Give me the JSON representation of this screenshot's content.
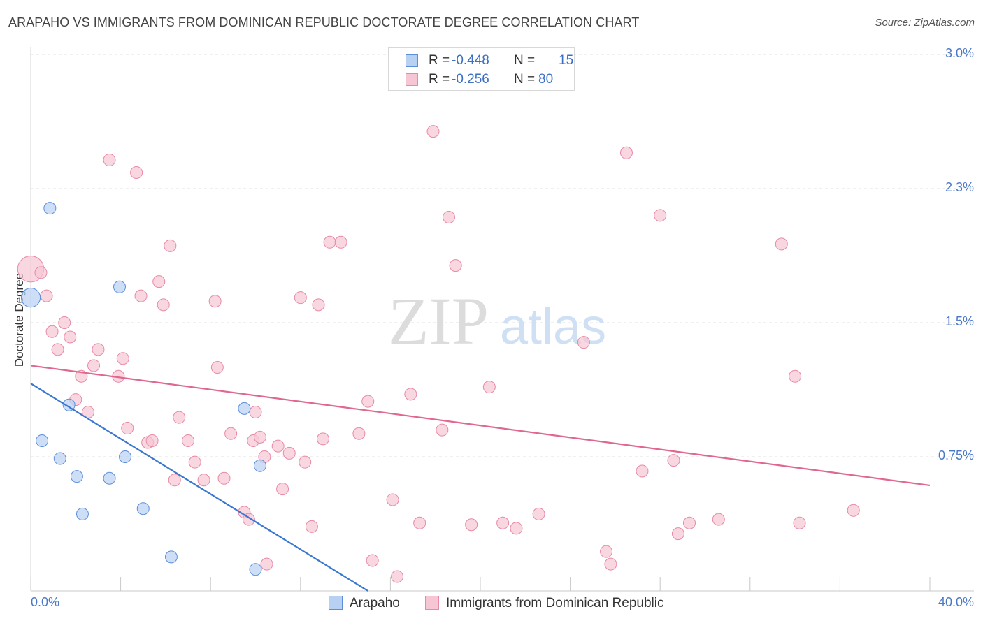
{
  "chart_data": {
    "type": "scatter",
    "title": "ARAPAHO VS IMMIGRANTS FROM DOMINICAN REPUBLIC DOCTORATE DEGREE CORRELATION CHART",
    "source": "Source: ZipAtlas.com",
    "xlabel": "",
    "ylabel": "Doctorate Degree",
    "xlim": [
      0,
      40
    ],
    "ylim": [
      0,
      3.0
    ],
    "x_tick_labels": [
      "0.0%",
      "40.0%"
    ],
    "y_ticks": [
      {
        "value": 3.0,
        "label": "3.0%"
      },
      {
        "value": 2.25,
        "label": "2.3%"
      },
      {
        "value": 1.5,
        "label": "1.5%"
      },
      {
        "value": 0.75,
        "label": "0.75%"
      }
    ],
    "watermark": {
      "zip": "ZIP",
      "atlas": "atlas"
    },
    "series": [
      {
        "name": "Arapaho",
        "color": "#5b8fd9",
        "fill": "#b8d0f2",
        "line_color": "#3a77d0",
        "stats": {
          "r_label": "R =",
          "r": "-0.448",
          "n_label": "N =",
          "n": "15"
        },
        "points": [
          [
            0.0,
            1.64,
            1.6
          ],
          [
            0.85,
            2.14,
            1.0
          ],
          [
            3.95,
            1.7,
            1.0
          ],
          [
            1.7,
            1.04,
            1.0
          ],
          [
            0.5,
            0.84,
            1.0
          ],
          [
            1.3,
            0.74,
            1.0
          ],
          [
            2.05,
            0.64,
            1.0
          ],
          [
            3.5,
            0.63,
            1.0
          ],
          [
            4.2,
            0.75,
            1.0
          ],
          [
            2.3,
            0.43,
            1.0
          ],
          [
            5.0,
            0.46,
            1.0
          ],
          [
            6.25,
            0.19,
            1.0
          ],
          [
            9.5,
            1.02,
            1.0
          ],
          [
            10.2,
            0.7,
            1.0
          ],
          [
            10.0,
            0.12,
            1.0
          ]
        ],
        "trend": [
          [
            0.0,
            1.16
          ],
          [
            15.0,
            0.0
          ]
        ]
      },
      {
        "name": "Immigrants from Dominican Republic",
        "color": "#e889a6",
        "fill": "#f7c6d4",
        "line_color": "#e0688e",
        "stats": {
          "r_label": "R =",
          "r": "-0.256",
          "n_label": "N =",
          "n": "80"
        },
        "points": [
          [
            0.0,
            1.8,
            2.2
          ],
          [
            0.45,
            1.78,
            1.0
          ],
          [
            0.7,
            1.65,
            1.0
          ],
          [
            0.95,
            1.45,
            1.0
          ],
          [
            1.2,
            1.35,
            1.0
          ],
          [
            1.5,
            1.5,
            1.0
          ],
          [
            1.75,
            1.42,
            1.0
          ],
          [
            2.25,
            1.2,
            1.0
          ],
          [
            2.0,
            1.07,
            1.0
          ],
          [
            2.55,
            1.0,
            1.0
          ],
          [
            2.8,
            1.26,
            1.0
          ],
          [
            3.0,
            1.35,
            1.0
          ],
          [
            3.5,
            2.41,
            1.0
          ],
          [
            3.9,
            1.2,
            1.0
          ],
          [
            4.1,
            1.3,
            1.0
          ],
          [
            4.3,
            0.91,
            1.0
          ],
          [
            4.7,
            2.34,
            1.0
          ],
          [
            4.9,
            1.65,
            1.0
          ],
          [
            5.2,
            0.83,
            1.0
          ],
          [
            5.4,
            0.84,
            1.0
          ],
          [
            5.7,
            1.73,
            1.0
          ],
          [
            5.9,
            1.6,
            1.0
          ],
          [
            6.2,
            1.93,
            1.0
          ],
          [
            6.4,
            0.62,
            1.0
          ],
          [
            6.6,
            0.97,
            1.0
          ],
          [
            7.0,
            0.84,
            1.0
          ],
          [
            7.3,
            0.72,
            1.0
          ],
          [
            7.7,
            0.62,
            1.0
          ],
          [
            8.2,
            1.62,
            1.0
          ],
          [
            8.3,
            1.25,
            1.0
          ],
          [
            8.6,
            0.63,
            1.0
          ],
          [
            8.9,
            0.88,
            1.0
          ],
          [
            9.5,
            0.44,
            1.0
          ],
          [
            9.7,
            0.4,
            1.0
          ],
          [
            9.9,
            0.84,
            1.0
          ],
          [
            10.0,
            1.0,
            1.0
          ],
          [
            10.2,
            0.86,
            1.0
          ],
          [
            10.4,
            0.75,
            1.0
          ],
          [
            10.5,
            0.15,
            1.0
          ],
          [
            11.0,
            0.81,
            1.0
          ],
          [
            11.2,
            0.57,
            1.0
          ],
          [
            11.5,
            0.77,
            1.0
          ],
          [
            12.0,
            1.64,
            1.0
          ],
          [
            12.2,
            0.72,
            1.0
          ],
          [
            12.5,
            0.36,
            1.0
          ],
          [
            12.8,
            1.6,
            1.0
          ],
          [
            13.0,
            0.85,
            1.0
          ],
          [
            13.3,
            1.95,
            1.0
          ],
          [
            13.8,
            1.95,
            1.0
          ],
          [
            14.6,
            0.88,
            1.0
          ],
          [
            15.0,
            1.06,
            1.0
          ],
          [
            15.2,
            0.17,
            1.0
          ],
          [
            16.1,
            0.51,
            1.0
          ],
          [
            16.3,
            0.08,
            1.0
          ],
          [
            16.9,
            1.1,
            1.0
          ],
          [
            17.3,
            0.38,
            1.0
          ],
          [
            17.9,
            2.57,
            1.0
          ],
          [
            18.3,
            0.9,
            1.0
          ],
          [
            18.6,
            2.09,
            1.0
          ],
          [
            18.9,
            1.82,
            1.0
          ],
          [
            19.6,
            0.37,
            1.0
          ],
          [
            20.4,
            1.14,
            1.0
          ],
          [
            21.0,
            0.38,
            1.0
          ],
          [
            21.6,
            0.35,
            1.0
          ],
          [
            22.6,
            0.43,
            1.0
          ],
          [
            24.6,
            1.39,
            1.0
          ],
          [
            25.6,
            0.22,
            1.0
          ],
          [
            25.8,
            0.15,
            1.0
          ],
          [
            26.5,
            2.45,
            1.0
          ],
          [
            27.2,
            0.67,
            1.0
          ],
          [
            28.0,
            2.1,
            1.0
          ],
          [
            28.6,
            0.73,
            1.0
          ],
          [
            28.8,
            0.32,
            1.0
          ],
          [
            29.3,
            0.38,
            1.0
          ],
          [
            30.6,
            0.4,
            1.0
          ],
          [
            33.4,
            1.94,
            1.0
          ],
          [
            34.0,
            1.2,
            1.0
          ],
          [
            34.2,
            0.38,
            1.0
          ],
          [
            36.6,
            0.45,
            1.0
          ]
        ],
        "trend": [
          [
            0.0,
            1.26
          ],
          [
            40.0,
            0.59
          ]
        ]
      }
    ]
  }
}
